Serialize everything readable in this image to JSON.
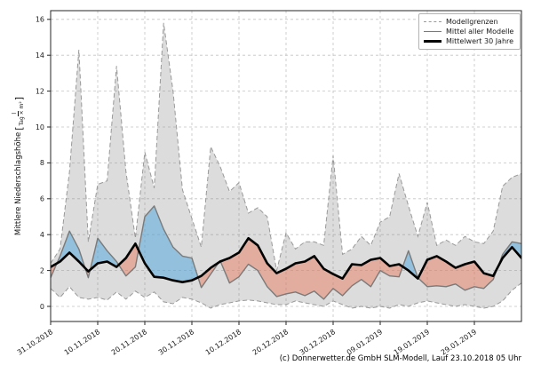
{
  "caption": "(c) Donnerwetter.de GmbH SLM-Modell, Lauf 23.10.2018 05 Uhr",
  "legend": {
    "items": [
      {
        "label": "Modellgrenzen",
        "style": "dashed-gray"
      },
      {
        "label": "Mittel aller Modelle",
        "style": "solid-gray"
      },
      {
        "label": "Mittelwert 30 Jahre",
        "style": "solid-black-thick"
      }
    ]
  },
  "chart_data": {
    "type": "line",
    "title": "",
    "ylabel": {
      "text": "Mittlere Niederschlagshöhe",
      "bracket_open": "[",
      "unit_numerator": "l",
      "unit_denominator": "Tag × m²",
      "bracket_close": "]"
    },
    "x_tick_labels": [
      "31.10.2018",
      "10.11.2018",
      "20.11.2018",
      "30.11.2018",
      "10.12.2018",
      "20.12.2018",
      "30.12.2018",
      "09.01.2019",
      "19.01.2019",
      "29.01.2019"
    ],
    "x_tick_days": [
      0,
      10,
      20,
      30,
      40,
      50,
      60,
      70,
      80,
      90
    ],
    "x_span_days": 100,
    "y_ticks": [
      0,
      2,
      4,
      6,
      8,
      10,
      12,
      14,
      16
    ],
    "ylim": [
      -0.85,
      16.5
    ],
    "grid": true,
    "legend_position": "upper right",
    "sample_days": [
      0,
      2,
      4,
      6,
      8,
      10,
      12,
      14,
      16,
      18,
      20,
      22,
      24,
      26,
      28,
      30,
      32,
      34,
      36,
      38,
      40,
      42,
      44,
      46,
      48,
      50,
      52,
      54,
      56,
      58,
      60,
      62,
      64,
      66,
      68,
      70,
      72,
      74,
      76,
      78,
      80,
      82,
      84,
      86,
      88,
      90,
      92,
      94,
      96,
      98,
      100
    ],
    "series": [
      {
        "name": "Modellgrenzen (obere Grenze)",
        "role": "upper_bound",
        "values": [
          2.4,
          3.2,
          7.5,
          14.3,
          3.6,
          6.8,
          7.0,
          13.4,
          7.5,
          3.8,
          8.6,
          6.6,
          15.8,
          12.0,
          6.5,
          4.9,
          3.3,
          8.9,
          7.8,
          6.4,
          6.9,
          5.2,
          5.5,
          5.0,
          2.0,
          4.1,
          3.2,
          3.6,
          3.6,
          3.4,
          8.4,
          2.9,
          3.2,
          3.9,
          3.4,
          4.7,
          5.0,
          7.4,
          5.6,
          3.9,
          5.8,
          3.4,
          3.7,
          3.4,
          3.9,
          3.6,
          3.5,
          4.2,
          6.7,
          7.2,
          7.4
        ]
      },
      {
        "name": "Modellgrenzen (untere Grenze)",
        "role": "lower_bound",
        "values": [
          1.0,
          0.5,
          1.1,
          0.5,
          0.4,
          0.5,
          0.35,
          0.8,
          0.4,
          0.85,
          0.5,
          0.8,
          0.25,
          0.15,
          0.5,
          0.4,
          0.2,
          -0.1,
          0.1,
          0.2,
          0.3,
          0.35,
          0.3,
          0.2,
          0.1,
          0.1,
          0.3,
          0.2,
          0.1,
          0.0,
          0.3,
          0.1,
          -0.1,
          0.0,
          -0.1,
          0.0,
          -0.1,
          0.1,
          0.0,
          0.2,
          0.3,
          0.2,
          0.1,
          0.0,
          0.1,
          0.0,
          -0.1,
          0.0,
          0.3,
          0.9,
          1.3
        ]
      },
      {
        "name": "Mittel aller Modelle",
        "role": "model_mean",
        "values": [
          1.6,
          2.8,
          4.2,
          3.2,
          1.6,
          3.8,
          3.1,
          2.5,
          1.7,
          2.2,
          5.0,
          5.6,
          4.3,
          3.3,
          2.8,
          2.7,
          1.05,
          1.8,
          2.55,
          1.3,
          1.65,
          2.35,
          2.0,
          1.1,
          0.55,
          0.7,
          0.8,
          0.6,
          0.85,
          0.4,
          1.0,
          0.6,
          1.15,
          1.5,
          1.1,
          2.0,
          1.7,
          1.65,
          3.1,
          1.6,
          1.1,
          1.15,
          1.1,
          1.25,
          0.9,
          1.1,
          1.0,
          1.5,
          2.9,
          3.6,
          3.5
        ]
      },
      {
        "name": "Mittelwert 30 Jahre",
        "role": "climate_mean",
        "values": [
          2.2,
          2.5,
          3.0,
          2.5,
          1.95,
          2.4,
          2.5,
          2.2,
          2.7,
          3.5,
          2.4,
          1.65,
          1.6,
          1.45,
          1.35,
          1.45,
          1.7,
          2.15,
          2.5,
          2.7,
          3.0,
          3.8,
          3.4,
          2.4,
          1.85,
          2.1,
          2.4,
          2.5,
          2.8,
          2.1,
          1.8,
          1.55,
          2.35,
          2.3,
          2.6,
          2.7,
          2.25,
          2.35,
          2.0,
          1.55,
          2.6,
          2.8,
          2.5,
          2.15,
          2.35,
          2.5,
          1.85,
          1.7,
          2.7,
          3.3,
          2.7
        ]
      }
    ],
    "colors": {
      "envelope_fill": "rgba(130,130,130,0.28)",
      "bound_line": "#999999",
      "model_mean_line": "#7a7a7a",
      "climate_mean_line": "#000000",
      "above_normal_fill": "rgba(88,170,220,0.55)",
      "below_normal_fill": "rgba(231,124,96,0.5)",
      "grid": "#c4c4c4",
      "axis": "#262626",
      "tick_text": "#1a1a1a"
    }
  }
}
